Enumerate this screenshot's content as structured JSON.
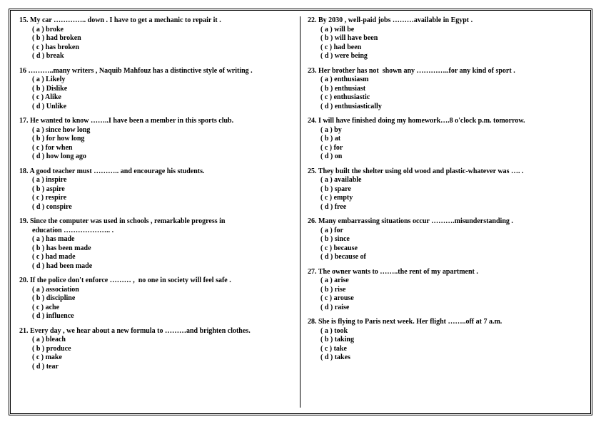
{
  "layout": {
    "outer_border": "3px double #000000",
    "divider": "1px solid #000000",
    "font_family": "Times New Roman",
    "font_size_pt": 10,
    "font_weight": "bold",
    "text_color": "#000000",
    "background_color": "#ffffff"
  },
  "left": [
    {
      "num": "15.",
      "stem": "My car ………….. down . I have to get a mechanic to repair it .",
      "opts": [
        "( a ) broke",
        "( b ) had broken",
        "( c ) has broken",
        "( d ) break"
      ]
    },
    {
      "num": "16",
      "stem": "………..many writers , Naquib Mahfouz has a distinctive style of writing .",
      "opts": [
        "( a ) Likely",
        "( b ) Dislike",
        "( c ) Alike",
        "( d ) Unlike"
      ]
    },
    {
      "num": "17.",
      "stem": "He wanted to know ……..I have been a member in this sports club.",
      "opts": [
        "( a ) since how long",
        "( b ) for how long",
        "( c ) for when",
        "( d ) how long ago"
      ]
    },
    {
      "num": "18.",
      "stem": "A good teacher must ……….. and encourage his students.",
      "opts": [
        "( a ) inspire",
        "( b ) aspire",
        "( c ) respire",
        "( d ) conspire"
      ]
    },
    {
      "num": "19.",
      "stem": "Since the computer was used in schools , remarkable progress in",
      "cont": "education ……………….. .",
      "opts": [
        "( a ) has made",
        "( b ) has been made",
        "( c ) had made",
        "( d ) had been made"
      ]
    },
    {
      "num": "20.",
      "stem": "If the police don't enforce ……… ,  no one in society will feel safe .",
      "opts": [
        "( a ) association",
        "( b ) discipline",
        "( c ) ache",
        "( d ) influence"
      ]
    },
    {
      "num": "21.",
      "stem": "Every day , we hear about a new formula to ………and brighten clothes.",
      "opts": [
        "( a ) bleach",
        "( b ) produce",
        "( c ) make",
        "( d ) tear"
      ]
    }
  ],
  "right": [
    {
      "num": "22.",
      "stem": "By 2030 , well-paid jobs ………available in Egypt .",
      "opts": [
        "( a ) will be",
        "( b ) will have been",
        "( c ) had been",
        "( d ) were being"
      ]
    },
    {
      "num": "23.",
      "stem": "Her brother has not  shown any …………..for any kind of sport .",
      "opts": [
        "( a ) enthusiasm",
        "( b ) enthusiast",
        "( c ) enthusiastic",
        "( d ) enthusiastically"
      ]
    },
    {
      "num": "24.",
      "stem": "I will have finished doing my homework….8 o'clock p.m. tomorrow.",
      "opts": [
        "( a ) by",
        "( b ) at",
        "( c ) for",
        "( d ) on"
      ]
    },
    {
      "num": "25.",
      "stem": "They built the shelter using old wood and plastic-whatever was …. .",
      "opts": [
        "( a ) available",
        "( b ) spare",
        "( c ) empty",
        "( d ) free"
      ]
    },
    {
      "num": "26.",
      "stem": "Many embarrassing situations occur ……….misunderstanding .",
      "opts": [
        "( a ) for",
        "( b ) since",
        "( c ) because",
        "( d ) because of"
      ]
    },
    {
      "num": "27.",
      "stem": "The owner wants to ……..the rent of my apartment .",
      "opts": [
        "( a ) arise",
        "( b ) rise",
        "( c ) arouse",
        "( d ) raise"
      ]
    },
    {
      "num": "28.",
      "stem": "She is flying to Paris next week. Her flight ……..off at 7 a.m.",
      "opts": [
        "( a ) took",
        "( b ) taking",
        "( c ) take",
        "( d ) takes"
      ]
    }
  ]
}
